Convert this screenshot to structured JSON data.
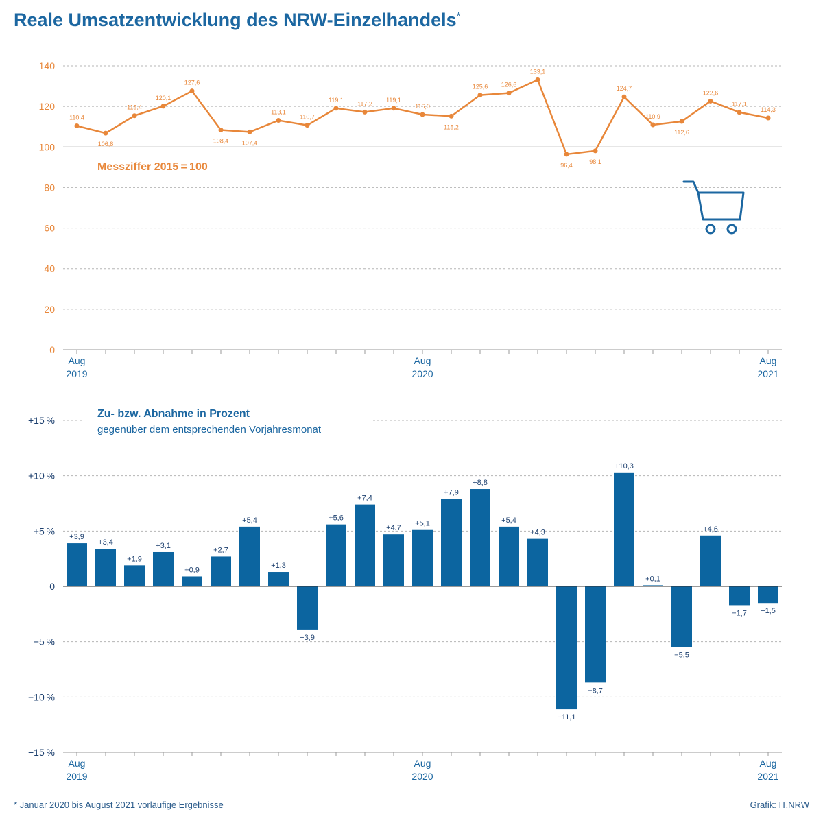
{
  "title": "Reale Umsatzentwicklung des NRW-Einzelhandels",
  "title_mark": "*",
  "footnote": "*  Januar 2020 bis August 2021 vorläufige Ergebnisse",
  "source": "Grafik: IT.NRW",
  "colors": {
    "title": "#1c67a1",
    "line": "#e8873a",
    "bar": "#0c65a0",
    "label_dark": "#1c3f6e"
  },
  "icons": [
    "shopping-cart-icon"
  ],
  "chart_data": [
    {
      "type": "line",
      "legend": "Messziffer 2015 = 100",
      "x_labels": [
        {
          "index": 0,
          "month": "Aug",
          "year": "2019"
        },
        {
          "index": 12,
          "month": "Aug",
          "year": "2020"
        },
        {
          "index": 24,
          "month": "Aug",
          "year": "2021"
        }
      ],
      "months": [
        "2019-08",
        "2019-09",
        "2019-10",
        "2019-11",
        "2019-12",
        "2020-01",
        "2020-02",
        "2020-03",
        "2020-04",
        "2020-05",
        "2020-06",
        "2020-07",
        "2020-08",
        "2020-09",
        "2020-10",
        "2020-11",
        "2020-12",
        "2021-01",
        "2021-02",
        "2021-03",
        "2021-04",
        "2021-05",
        "2021-06",
        "2021-07",
        "2021-08"
      ],
      "values": [
        110.4,
        106.8,
        115.4,
        120.1,
        127.6,
        108.4,
        107.4,
        113.1,
        110.7,
        119.1,
        117.2,
        119.1,
        116.0,
        115.2,
        125.6,
        126.6,
        133.1,
        96.4,
        98.1,
        124.7,
        110.9,
        112.6,
        122.6,
        117.1,
        114.3
      ],
      "labels": [
        "110,4",
        "106,8",
        "115,4",
        "120,1",
        "127,6",
        "108,4",
        "107,4",
        "113,1",
        "110,7",
        "119,1",
        "117,2",
        "119,1",
        "116,0",
        "115,2",
        "125,6",
        "126,6",
        "133,1",
        "96,4",
        "98,1",
        "124,7",
        "110,9",
        "112,6",
        "122,6",
        "117,1",
        "114,3"
      ],
      "label_below": [
        false,
        true,
        false,
        false,
        false,
        true,
        true,
        false,
        false,
        false,
        false,
        false,
        false,
        true,
        false,
        false,
        false,
        true,
        true,
        false,
        false,
        true,
        false,
        false,
        false
      ],
      "ylim": [
        0,
        140
      ],
      "yticks": [
        0,
        20,
        40,
        60,
        80,
        100,
        120,
        140
      ],
      "ytick_labels": [
        "0",
        "20",
        "40",
        "60",
        "80",
        "100",
        "120",
        "140"
      ],
      "reference_line": 100,
      "grid": true
    },
    {
      "type": "bar",
      "title": "Zu- bzw. Abnahme in Prozent",
      "subtitle": "gegenüber dem entsprechenden Vorjahresmonat",
      "x_labels": [
        {
          "index": 0,
          "month": "Aug",
          "year": "2019"
        },
        {
          "index": 12,
          "month": "Aug",
          "year": "2020"
        },
        {
          "index": 24,
          "month": "Aug",
          "year": "2021"
        }
      ],
      "months": [
        "2019-08",
        "2019-09",
        "2019-10",
        "2019-11",
        "2019-12",
        "2020-01",
        "2020-02",
        "2020-03",
        "2020-04",
        "2020-05",
        "2020-06",
        "2020-07",
        "2020-08",
        "2020-09",
        "2020-10",
        "2020-11",
        "2020-12",
        "2021-01",
        "2021-02",
        "2021-03",
        "2021-04",
        "2021-05",
        "2021-06",
        "2021-07",
        "2021-08"
      ],
      "values": [
        3.9,
        3.4,
        1.9,
        3.1,
        0.9,
        2.7,
        5.4,
        1.3,
        -3.9,
        5.6,
        7.4,
        4.7,
        5.1,
        7.9,
        8.8,
        5.4,
        4.3,
        -11.1,
        -8.7,
        10.3,
        0.1,
        -5.5,
        4.6,
        -1.7,
        -1.5
      ],
      "labels": [
        "+3,9",
        "+3,4",
        "+1,9",
        "+3,1",
        "+0,9",
        "+2,7",
        "+5,4",
        "+1,3",
        "−3,9",
        "+5,6",
        "+7,4",
        "+4,7",
        "+5,1",
        "+7,9",
        "+8,8",
        "+5,4",
        "+4,3",
        "−11,1",
        "−8,7",
        "+10,3",
        "+0,1",
        "−5,5",
        "+4,6",
        "−1,7",
        "−1,5"
      ],
      "ylim": [
        -15,
        15
      ],
      "yticks": [
        -15,
        -10,
        -5,
        0,
        5,
        10,
        15
      ],
      "ytick_labels": [
        "−15 %",
        "−10 %",
        "−5 %",
        "0",
        "+5 %",
        "+10 %",
        "+15 %"
      ],
      "grid": true
    }
  ]
}
